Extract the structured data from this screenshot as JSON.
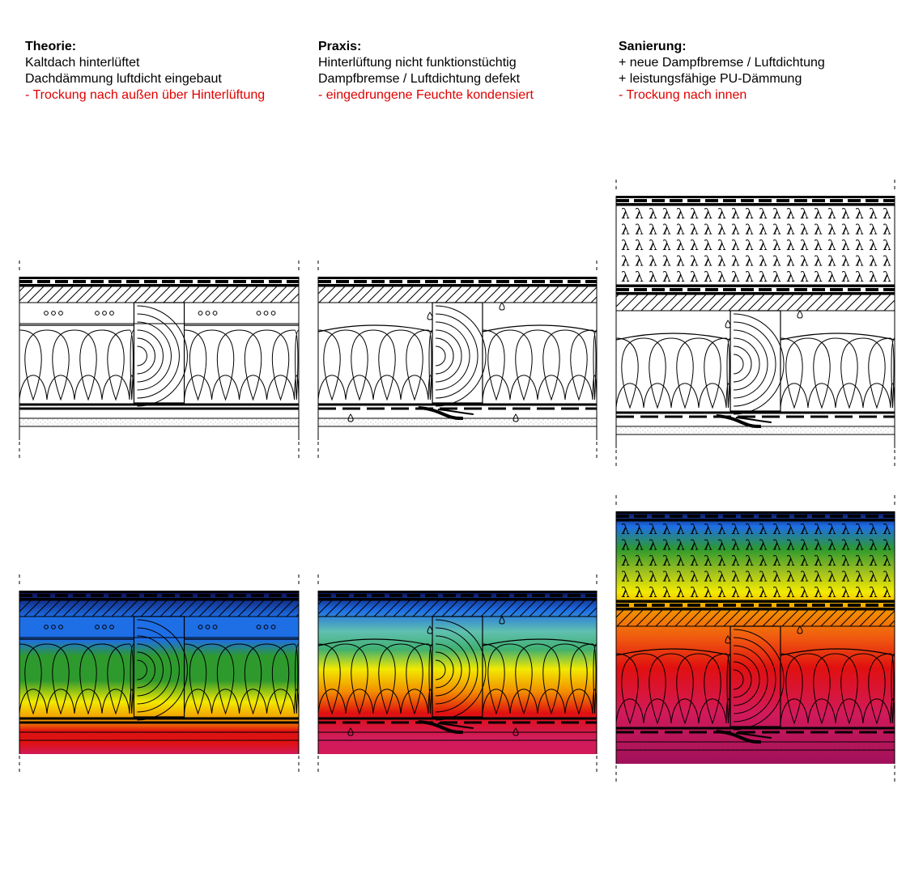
{
  "panels": [
    {
      "id": "theorie",
      "title": "Theorie:",
      "lines": [
        "Kaltdach hinterlüftet",
        "Dachdämmung luftdicht eingebaut"
      ],
      "note": "- Trockung nach außen über Hinterlüftung",
      "variant": "theory"
    },
    {
      "id": "praxis",
      "title": "Praxis:",
      "lines": [
        "Hinterlüftung nicht funktionstüchtig",
        "Dampfbremse / Luftdichtung defekt"
      ],
      "note": "- eingedrungene Feuchte kondensiert",
      "variant": "practice"
    },
    {
      "id": "sanierung",
      "title": "Sanierung:",
      "lines": [
        "+ neue Dampfbremse / Luftdichtung",
        "+ leistungsfähige PU-Dämmung"
      ],
      "note": "- Trockung nach innen",
      "variant": "renovation"
    }
  ],
  "colors": {
    "text": "#000000",
    "note": "#e00000",
    "temp_cold": "#0a0a50",
    "temp_blue": "#1e6ee6",
    "temp_green": "#2e9a2e",
    "temp_yellow": "#f2ea00",
    "temp_orange": "#f28c00",
    "temp_red": "#e01010",
    "temp_magenta": "#d21a5a",
    "temp_warm": "#a0105a"
  },
  "icons": {
    "lambda": "λ",
    "droplet": "droplet-icon",
    "ventilation": "ventilation-holes"
  }
}
